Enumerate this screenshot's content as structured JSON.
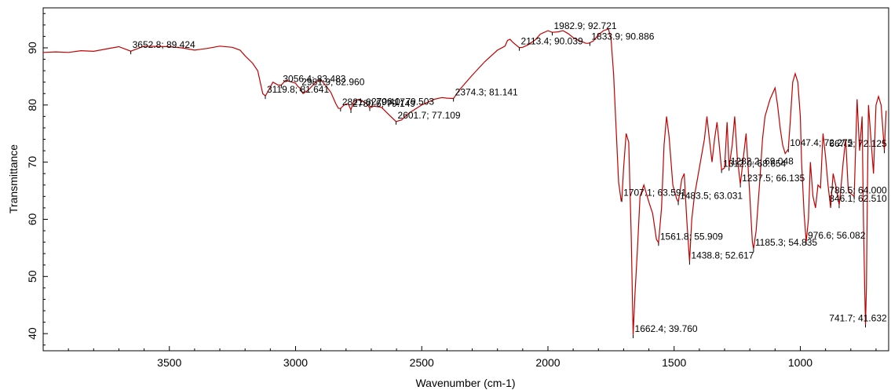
{
  "chart_data": {
    "type": "line",
    "title": "",
    "xlabel": "Wavenumber (cm-1)",
    "ylabel": "Transmittance",
    "xlim": [
      4000,
      650
    ],
    "ylim": [
      37,
      97
    ],
    "x_reversed": true,
    "grid": false,
    "legend": "none",
    "line_color": "#c00000",
    "x_ticks": [
      {
        "value": 3500,
        "label": "3500"
      },
      {
        "value": 3000,
        "label": "3000"
      },
      {
        "value": 2500,
        "label": "2500"
      },
      {
        "value": 2000,
        "label": "2000"
      },
      {
        "value": 1500,
        "label": "1500"
      },
      {
        "value": 1000,
        "label": "1000"
      }
    ],
    "y_ticks": [
      {
        "value": 90,
        "label": "90"
      },
      {
        "value": 80,
        "label": "80"
      },
      {
        "value": 70,
        "label": "70"
      },
      {
        "value": 60,
        "label": "60"
      },
      {
        "value": 50,
        "label": "50"
      },
      {
        "value": 40,
        "label": "40"
      }
    ],
    "series": [
      {
        "x": [
          4000,
          3950,
          3900,
          3850,
          3800,
          3750,
          3700,
          3652.8,
          3600,
          3500,
          3450,
          3400,
          3350,
          3300,
          3250,
          3220,
          3200,
          3170,
          3150,
          3140,
          3130,
          3119.8,
          3110,
          3090,
          3070,
          3056.4,
          3040,
          3020,
          3000,
          2990,
          2981.9,
          2970,
          2950,
          2920,
          2900,
          2880,
          2860,
          2840,
          2830,
          2821.6,
          2810,
          2800,
          2790,
          2780.6,
          2770,
          2750,
          2720,
          2706,
          2690,
          2660,
          2630,
          2601.7,
          2580,
          2550,
          2500,
          2450,
          2420,
          2400,
          2374.3,
          2350,
          2300,
          2250,
          2200,
          2170,
          2160,
          2150,
          2140,
          2113.4,
          2100,
          2080,
          2050,
          2030,
          2000,
          1982.9,
          1960,
          1940,
          1920,
          1900,
          1880,
          1860,
          1850,
          1840,
          1833.9,
          1820,
          1800,
          1780,
          1760,
          1750,
          1740,
          1730,
          1720,
          1710,
          1707.1,
          1700,
          1690,
          1680,
          1670,
          1662.4,
          1655,
          1645,
          1635,
          1620,
          1600,
          1585,
          1570,
          1561.8,
          1550,
          1540,
          1530,
          1520,
          1505,
          1490,
          1483.5,
          1478,
          1470,
          1460,
          1450,
          1438.8,
          1430,
          1420,
          1400,
          1380,
          1370,
          1360,
          1350,
          1340,
          1330,
          1312,
          1300,
          1290,
          1282.2,
          1270,
          1260,
          1250,
          1237.5,
          1225,
          1215,
          1200,
          1190,
          1185.3,
          1175,
          1160,
          1150,
          1140,
          1120,
          1100,
          1090,
          1080,
          1070,
          1060,
          1047.4,
          1040,
          1030,
          1020,
          1010,
          1000,
          995,
          985,
          976.6,
          968,
          960,
          950,
          940,
          930,
          920,
          910,
          900,
          890,
          880,
          870,
          860,
          846.1,
          840,
          830,
          820,
          810,
          800,
          786.5,
          775,
          765,
          755,
          750,
          745,
          741.7,
          738,
          735,
          730,
          720,
          710,
          700,
          690,
          680,
          667.2,
          660
        ],
        "y": [
          89.2,
          89.3,
          89.2,
          89.5,
          89.4,
          89.8,
          90.2,
          89.424,
          90.3,
          90.2,
          90.0,
          89.6,
          89.9,
          90.3,
          90.1,
          89.6,
          88.6,
          87.3,
          86.0,
          84.0,
          82.0,
          81.6,
          82.3,
          84.0,
          83.5,
          83.483,
          84.3,
          84.1,
          83.8,
          83.2,
          82.96,
          82.0,
          82.6,
          84.0,
          84.4,
          83.4,
          82.2,
          80.2,
          79.417,
          79.4,
          79.9,
          80.2,
          80.1,
          79.149,
          80.6,
          81.0,
          80.3,
          79.503,
          79.8,
          79.6,
          78.3,
          77.109,
          77.4,
          78.6,
          80.0,
          81.0,
          81.3,
          81.2,
          81.141,
          82.7,
          85.2,
          87.6,
          89.6,
          90.3,
          91.3,
          91.5,
          91.0,
          90.039,
          90.1,
          90.5,
          91.4,
          92.4,
          93.0,
          92.721,
          92.8,
          93.0,
          92.5,
          91.8,
          91.3,
          91.0,
          90.8,
          90.8,
          90.886,
          91.2,
          92.3,
          93.0,
          93.3,
          91.5,
          85.5,
          76.0,
          66.5,
          63.3,
          63.591,
          69.0,
          75.0,
          73.5,
          57.0,
          39.76,
          47.0,
          55.0,
          64.0,
          66.0,
          63.0,
          61.0,
          56.5,
          55.909,
          62.0,
          73.0,
          78.0,
          74.5,
          66.0,
          63.6,
          63.031,
          64.5,
          67.0,
          68.0,
          60.0,
          52.617,
          60.0,
          64.0,
          69.0,
          74.0,
          78.0,
          74.0,
          70.0,
          74.0,
          77.0,
          68.654,
          69.0,
          77.0,
          69.048,
          73.0,
          78.0,
          71.0,
          66.135,
          71.0,
          75.0,
          64.0,
          56.0,
          54.835,
          58.0,
          67.0,
          74.0,
          78.0,
          81.0,
          83.0,
          80.0,
          76.0,
          73.0,
          71.5,
          72.275,
          77.0,
          84.0,
          85.5,
          84.0,
          78.0,
          70.0,
          61.0,
          56.082,
          60.0,
          70.0,
          64.0,
          62.0,
          66.0,
          65.5,
          75.0,
          71.0,
          66.0,
          62.0,
          68.0,
          66.0,
          62.51,
          65.0,
          70.0,
          74.0,
          65.0,
          64.5,
          64.0,
          81.0,
          72.0,
          78.0,
          60.0,
          48.0,
          41.632,
          48.0,
          62.0,
          80.0,
          74.0,
          68.0,
          80.0,
          81.5,
          80.0,
          72.125,
          79.0
        ]
      }
    ],
    "annotations": [
      {
        "x": 3652.8,
        "y": 89.424,
        "text": "3652.8; 89.424"
      },
      {
        "x": 3119.8,
        "y": 81.6,
        "text": "3119.8; 81.641"
      },
      {
        "x": 3056.4,
        "y": 83.483,
        "text": "3056.4; 83.483"
      },
      {
        "x": 2981.9,
        "y": 82.96,
        "text": "2981.9; 82.960"
      },
      {
        "x": 2821.6,
        "y": 79.417,
        "text": "2821.6; 79.417"
      },
      {
        "x": 2780.6,
        "y": 79.149,
        "text": "2780.6; 79.149"
      },
      {
        "x": 2706.0,
        "y": 79.503,
        "text": "2706.0; 79.503"
      },
      {
        "x": 2601.7,
        "y": 77.109,
        "text": "2601.7; 77.109"
      },
      {
        "x": 2374.3,
        "y": 81.141,
        "text": "2374.3; 81.141"
      },
      {
        "x": 2113.4,
        "y": 90.039,
        "text": "2113.4; 90.039"
      },
      {
        "x": 1982.9,
        "y": 92.721,
        "text": "1982.9; 92.721"
      },
      {
        "x": 1833.9,
        "y": 90.886,
        "text": "1833.9; 90.886"
      },
      {
        "x": 1707.1,
        "y": 63.591,
        "text": "1707.1; 63.591"
      },
      {
        "x": 1662.4,
        "y": 39.76,
        "text": "1662.4; 39.760"
      },
      {
        "x": 1561.8,
        "y": 55.909,
        "text": "1561.8; 55.909"
      },
      {
        "x": 1483.5,
        "y": 63.031,
        "text": "1483.5; 63.031"
      },
      {
        "x": 1438.8,
        "y": 52.617,
        "text": "1438.8; 52.617"
      },
      {
        "x": 1312.0,
        "y": 68.654,
        "text": "1312.0; 68.654"
      },
      {
        "x": 1282.2,
        "y": 69.048,
        "text": "1282.2; 69.048"
      },
      {
        "x": 1237.5,
        "y": 66.135,
        "text": "1237.5; 66.135"
      },
      {
        "x": 1185.3,
        "y": 54.835,
        "text": "1185.3; 54.835"
      },
      {
        "x": 1047.4,
        "y": 72.275,
        "text": "1047.4; 72.275"
      },
      {
        "x": 976.6,
        "y": 56.082,
        "text": "976.6; 56.082"
      },
      {
        "x": 846.1,
        "y": 62.51,
        "text": "846.1; 62.510"
      },
      {
        "x": 786.5,
        "y": 64.0,
        "text": "786.5; 64.000"
      },
      {
        "x": 741.7,
        "y": 41.632,
        "text": "741.7; 41.632"
      },
      {
        "x": 667.2,
        "y": 72.125,
        "text": "667.2; 72.125"
      }
    ]
  }
}
